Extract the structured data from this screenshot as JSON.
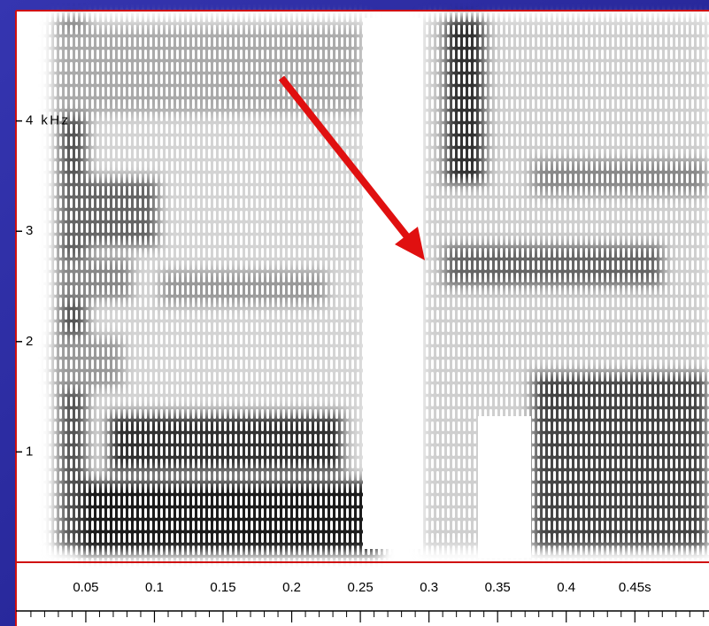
{
  "chart_data": {
    "type": "spectrogram",
    "xlim": [
      0,
      0.504
    ],
    "ylim": [
      0,
      5
    ],
    "xticks": [
      0.05,
      0.1,
      0.15,
      0.2,
      0.25,
      0.3,
      0.35,
      0.4,
      {
        "value": 0.45,
        "label": "0.45s"
      }
    ],
    "xminorticks": [
      0.01,
      0.02,
      0.03,
      0.04,
      0.06,
      0.07,
      0.08,
      0.09,
      0.11,
      0.12,
      0.13,
      0.14,
      0.16,
      0.17,
      0.18,
      0.19,
      0.21,
      0.22,
      0.23,
      0.24,
      0.26,
      0.27,
      0.28,
      0.29,
      0.31,
      0.32,
      0.33,
      0.34,
      0.36,
      0.37,
      0.38,
      0.39,
      0.41,
      0.42,
      0.43,
      0.44,
      0.46,
      0.47,
      0.48,
      0.49,
      0.5
    ],
    "yticks": [
      1,
      2,
      3,
      {
        "value": 4,
        "label": "4 kHz"
      }
    ]
  }
}
